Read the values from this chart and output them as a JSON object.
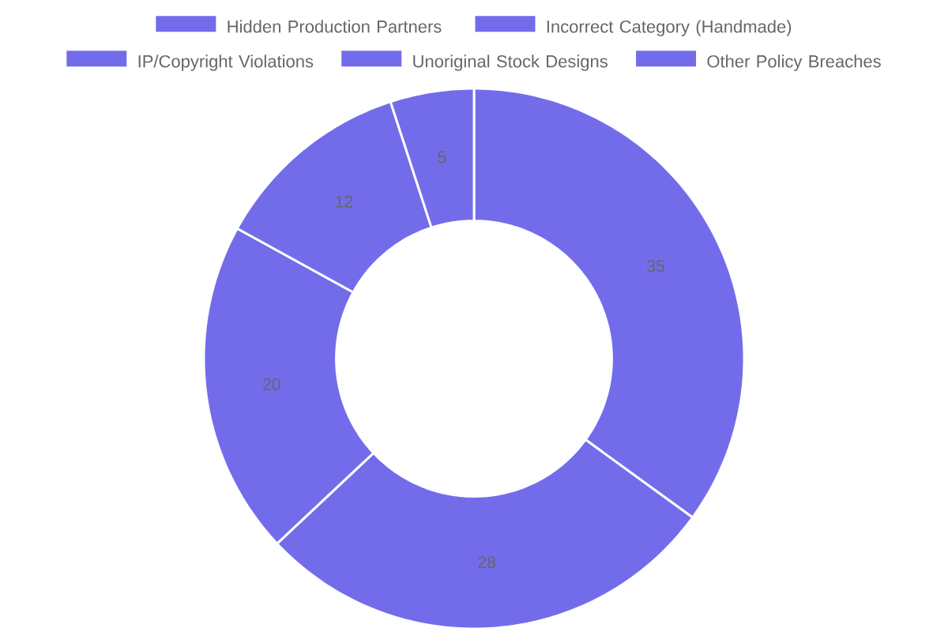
{
  "chart_data": {
    "type": "donut",
    "categories": [
      "Hidden Production Partners",
      "Incorrect Category (Handmade)",
      "IP/Copyright Violations",
      "Unoriginal Stock Designs",
      "Other Policy Breaches"
    ],
    "values": [
      35,
      28,
      20,
      12,
      5
    ],
    "colors": [
      "#736cea",
      "#736cea",
      "#736cea",
      "#736cea",
      "#736cea"
    ],
    "legend": "top",
    "data_labels": true
  }
}
